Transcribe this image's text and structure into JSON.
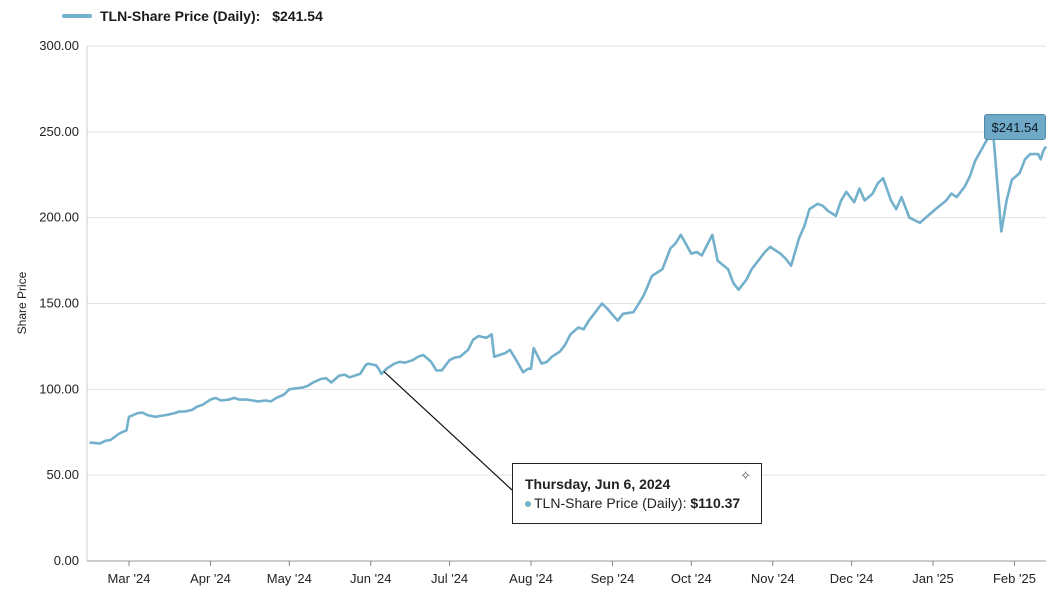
{
  "legend": {
    "label": "TLN-Share Price (Daily):",
    "value": "$241.54",
    "color": "#73b0cc"
  },
  "callout": {
    "value": "$241.54"
  },
  "tooltip": {
    "date": "Thursday, Jun 6, 2024",
    "series_label": "TLN-Share Price (Daily):",
    "value": "$110.37",
    "pin_icon": "pushpin-icon"
  },
  "chart_data": {
    "type": "line",
    "ylabel": "Share Price",
    "ylim": [
      0,
      300
    ],
    "y_ticks": [
      "0.00",
      "50.00",
      "100.00",
      "150.00",
      "200.00",
      "250.00",
      "300.00"
    ],
    "x_ticks": [
      {
        "label": "Mar '24",
        "date": "2024-03-01"
      },
      {
        "label": "Apr '24",
        "date": "2024-04-01"
      },
      {
        "label": "May '24",
        "date": "2024-05-01"
      },
      {
        "label": "Jun '24",
        "date": "2024-06-01"
      },
      {
        "label": "Jul '24",
        "date": "2024-07-01"
      },
      {
        "label": "Aug '24",
        "date": "2024-08-01"
      },
      {
        "label": "Sep '24",
        "date": "2024-09-01"
      },
      {
        "label": "Oct '24",
        "date": "2024-10-01"
      },
      {
        "label": "Nov '24",
        "date": "2024-11-01"
      },
      {
        "label": "Dec '24",
        "date": "2024-12-01"
      },
      {
        "label": "Jan '25",
        "date": "2025-01-01"
      },
      {
        "label": "Feb '25",
        "date": "2025-02-01"
      }
    ],
    "xlim": [
      "2024-02-14",
      "2025-02-13"
    ],
    "highlight": {
      "date": "2024-06-06",
      "value": 110.37
    },
    "series": [
      {
        "color": "#73b0cc",
        "points": [
          [
            "2024-02-15",
            69
          ],
          [
            "2024-02-19",
            68.5
          ],
          [
            "2024-02-21",
            70
          ],
          [
            "2024-02-23",
            70.5
          ],
          [
            "2024-02-26",
            74
          ],
          [
            "2024-02-28",
            75.5
          ],
          [
            "2024-02-29",
            76
          ],
          [
            "2024-03-01",
            84
          ],
          [
            "2024-03-04",
            86
          ],
          [
            "2024-03-06",
            86.5
          ],
          [
            "2024-03-08",
            85
          ],
          [
            "2024-03-11",
            84
          ],
          [
            "2024-03-13",
            84.5
          ],
          [
            "2024-03-15",
            85
          ],
          [
            "2024-03-18",
            86
          ],
          [
            "2024-03-20",
            87
          ],
          [
            "2024-03-22",
            87
          ],
          [
            "2024-03-25",
            88
          ],
          [
            "2024-03-27",
            90
          ],
          [
            "2024-03-29",
            91
          ],
          [
            "2024-04-01",
            94
          ],
          [
            "2024-04-03",
            95
          ],
          [
            "2024-04-05",
            93.5
          ],
          [
            "2024-04-08",
            94
          ],
          [
            "2024-04-10",
            95
          ],
          [
            "2024-04-12",
            94
          ],
          [
            "2024-04-15",
            94
          ],
          [
            "2024-04-17",
            93.5
          ],
          [
            "2024-04-19",
            93
          ],
          [
            "2024-04-22",
            93.5
          ],
          [
            "2024-04-24",
            93
          ],
          [
            "2024-04-26",
            95
          ],
          [
            "2024-04-29",
            97
          ],
          [
            "2024-05-01",
            100
          ],
          [
            "2024-05-03",
            100.5
          ],
          [
            "2024-05-06",
            101
          ],
          [
            "2024-05-08",
            102
          ],
          [
            "2024-05-10",
            104
          ],
          [
            "2024-05-13",
            106
          ],
          [
            "2024-05-15",
            106.5
          ],
          [
            "2024-05-17",
            104
          ],
          [
            "2024-05-20",
            108
          ],
          [
            "2024-05-22",
            108.5
          ],
          [
            "2024-05-24",
            107
          ],
          [
            "2024-05-28",
            109
          ],
          [
            "2024-05-30",
            114
          ],
          [
            "2024-05-31",
            115
          ],
          [
            "2024-06-03",
            114
          ],
          [
            "2024-06-04",
            112
          ],
          [
            "2024-06-05",
            109
          ],
          [
            "2024-06-06",
            110.37
          ],
          [
            "2024-06-07",
            112
          ],
          [
            "2024-06-10",
            115
          ],
          [
            "2024-06-12",
            116
          ],
          [
            "2024-06-14",
            115.5
          ],
          [
            "2024-06-17",
            117
          ],
          [
            "2024-06-19",
            119
          ],
          [
            "2024-06-21",
            120
          ],
          [
            "2024-06-24",
            116
          ],
          [
            "2024-06-26",
            111
          ],
          [
            "2024-06-28",
            111
          ],
          [
            "2024-07-01",
            117
          ],
          [
            "2024-07-03",
            118.5
          ],
          [
            "2024-07-05",
            119
          ],
          [
            "2024-07-08",
            123
          ],
          [
            "2024-07-10",
            129
          ],
          [
            "2024-07-12",
            131
          ],
          [
            "2024-07-15",
            130
          ],
          [
            "2024-07-17",
            132
          ],
          [
            "2024-07-18",
            119
          ],
          [
            "2024-07-22",
            121
          ],
          [
            "2024-07-24",
            123
          ],
          [
            "2024-07-26",
            118
          ],
          [
            "2024-07-29",
            110
          ],
          [
            "2024-07-31",
            112
          ],
          [
            "2024-08-01",
            112
          ],
          [
            "2024-08-02",
            124
          ],
          [
            "2024-08-05",
            115
          ],
          [
            "2024-08-07",
            116
          ],
          [
            "2024-08-09",
            119
          ],
          [
            "2024-08-12",
            122
          ],
          [
            "2024-08-14",
            126
          ],
          [
            "2024-08-16",
            132
          ],
          [
            "2024-08-19",
            136
          ],
          [
            "2024-08-21",
            135
          ],
          [
            "2024-08-23",
            140
          ],
          [
            "2024-08-26",
            146
          ],
          [
            "2024-08-28",
            150
          ],
          [
            "2024-08-30",
            147
          ],
          [
            "2024-09-03",
            140
          ],
          [
            "2024-09-05",
            144
          ],
          [
            "2024-09-09",
            145
          ],
          [
            "2024-09-11",
            150
          ],
          [
            "2024-09-13",
            155
          ],
          [
            "2024-09-16",
            166
          ],
          [
            "2024-09-18",
            168
          ],
          [
            "2024-09-20",
            170
          ],
          [
            "2024-09-23",
            182
          ],
          [
            "2024-09-25",
            185
          ],
          [
            "2024-09-27",
            190
          ],
          [
            "2024-10-01",
            179
          ],
          [
            "2024-10-03",
            180
          ],
          [
            "2024-10-05",
            178
          ],
          [
            "2024-10-09",
            190
          ],
          [
            "2024-10-11",
            175
          ],
          [
            "2024-10-15",
            170
          ],
          [
            "2024-10-17",
            162
          ],
          [
            "2024-10-19",
            158
          ],
          [
            "2024-10-22",
            164
          ],
          [
            "2024-10-24",
            170
          ],
          [
            "2024-10-26",
            174
          ],
          [
            "2024-10-29",
            180
          ],
          [
            "2024-10-31",
            183
          ],
          [
            "2024-11-04",
            179
          ],
          [
            "2024-11-06",
            176
          ],
          [
            "2024-11-08",
            172
          ],
          [
            "2024-11-11",
            188
          ],
          [
            "2024-11-13",
            195
          ],
          [
            "2024-11-15",
            205
          ],
          [
            "2024-11-18",
            208
          ],
          [
            "2024-11-20",
            207
          ],
          [
            "2024-11-22",
            204
          ],
          [
            "2024-11-25",
            201
          ],
          [
            "2024-11-27",
            210
          ],
          [
            "2024-11-29",
            215
          ],
          [
            "2024-12-02",
            209
          ],
          [
            "2024-12-04",
            217
          ],
          [
            "2024-12-06",
            210
          ],
          [
            "2024-12-09",
            214
          ],
          [
            "2024-12-11",
            220
          ],
          [
            "2024-12-13",
            223
          ],
          [
            "2024-12-16",
            210
          ],
          [
            "2024-12-18",
            205
          ],
          [
            "2024-12-20",
            212
          ],
          [
            "2024-12-23",
            200
          ],
          [
            "2024-12-27",
            197
          ],
          [
            "2024-12-30",
            201
          ],
          [
            "2025-01-02",
            205
          ],
          [
            "2025-01-06",
            210
          ],
          [
            "2025-01-08",
            214
          ],
          [
            "2025-01-10",
            212
          ],
          [
            "2025-01-13",
            218
          ],
          [
            "2025-01-15",
            224
          ],
          [
            "2025-01-17",
            233
          ],
          [
            "2025-01-21",
            244
          ],
          [
            "2025-01-23",
            249
          ],
          [
            "2025-01-24",
            247
          ],
          [
            "2025-01-27",
            192
          ],
          [
            "2025-01-29",
            210
          ],
          [
            "2025-01-31",
            222
          ],
          [
            "2025-02-03",
            226
          ],
          [
            "2025-02-05",
            234
          ],
          [
            "2025-02-07",
            237
          ],
          [
            "2025-02-10",
            237
          ],
          [
            "2025-02-11",
            234
          ],
          [
            "2025-02-12",
            239
          ],
          [
            "2025-02-13",
            241.54
          ]
        ]
      }
    ]
  }
}
